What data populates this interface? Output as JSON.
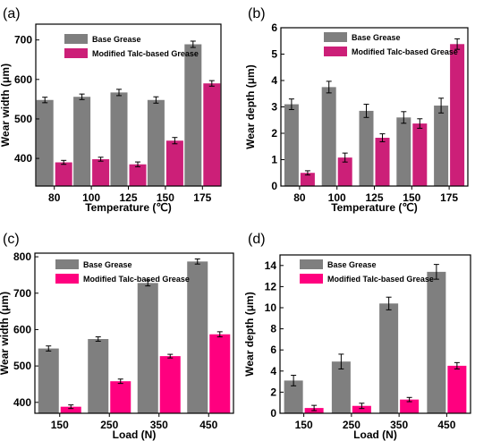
{
  "colors": {
    "base": "#7f7f7f",
    "modified_ab": "#cc1f78",
    "modified_cd": "#ff007f",
    "errorbar": "#000000"
  },
  "chart_data": [
    {
      "type": "bar",
      "panel_label": "(a)",
      "categories": [
        "80",
        "100",
        "125",
        "150",
        "175"
      ],
      "xlabel": "Temperature (℃)",
      "ylabel": "Wear width (μm)",
      "ylim": [
        330,
        740
      ],
      "yticks": [
        400,
        500,
        600,
        700
      ],
      "legend": "top-left",
      "series": [
        {
          "name": "Base Grease",
          "values": [
            548,
            556,
            567,
            548,
            689
          ],
          "errors": [
            7,
            7,
            8,
            8,
            8
          ]
        },
        {
          "name": "Modified Talc-based Grease",
          "values": [
            390,
            398,
            385,
            445,
            590
          ],
          "errors": [
            5,
            5,
            6,
            8,
            7
          ]
        }
      ]
    },
    {
      "type": "bar",
      "panel_label": "(b)",
      "categories": [
        "80",
        "100",
        "125",
        "150",
        "175"
      ],
      "xlabel": "Temperature (℃)",
      "ylabel": "Wear depth (μm)",
      "ylim": [
        0,
        6
      ],
      "yticks": [
        0,
        1,
        2,
        3,
        4,
        5,
        6
      ],
      "legend": "top-center",
      "series": [
        {
          "name": "Base Grease",
          "values": [
            3.1,
            3.75,
            2.85,
            2.6,
            3.05
          ],
          "errors": [
            0.2,
            0.22,
            0.25,
            0.22,
            0.28
          ]
        },
        {
          "name": "Modified Talc-based Grease",
          "values": [
            0.5,
            1.08,
            1.83,
            2.37,
            5.38
          ],
          "errors": [
            0.08,
            0.17,
            0.15,
            0.18,
            0.2
          ]
        }
      ]
    },
    {
      "type": "bar",
      "panel_label": "(c)",
      "categories": [
        "150",
        "250",
        "350",
        "450"
      ],
      "xlabel": "Load (N)",
      "ylabel": "Wear width (μm)",
      "ylim": [
        370,
        810
      ],
      "yticks": [
        400,
        500,
        600,
        700,
        800
      ],
      "legend": "top-left",
      "series": [
        {
          "name": "Base Grease",
          "values": [
            548,
            574,
            728,
            787
          ],
          "errors": [
            7,
            6,
            8,
            7
          ]
        },
        {
          "name": "Modified Talc-based Grease",
          "values": [
            388,
            458,
            527,
            587
          ],
          "errors": [
            5,
            6,
            5,
            7
          ]
        }
      ]
    },
    {
      "type": "bar",
      "panel_label": "(d)",
      "categories": [
        "150",
        "250",
        "350",
        "450"
      ],
      "xlabel": "Load (N)",
      "ylabel": "Wear depth (μm)",
      "ylim": [
        0,
        15
      ],
      "yticks": [
        0,
        2,
        4,
        6,
        8,
        10,
        12,
        14
      ],
      "legend": "top-left",
      "series": [
        {
          "name": "Base Grease",
          "values": [
            3.1,
            4.9,
            10.4,
            13.4
          ],
          "errors": [
            0.5,
            0.7,
            0.6,
            0.7
          ]
        },
        {
          "name": "Modified Talc-based Grease",
          "values": [
            0.5,
            0.7,
            1.3,
            4.5
          ],
          "errors": [
            0.25,
            0.25,
            0.2,
            0.3
          ]
        }
      ]
    }
  ]
}
